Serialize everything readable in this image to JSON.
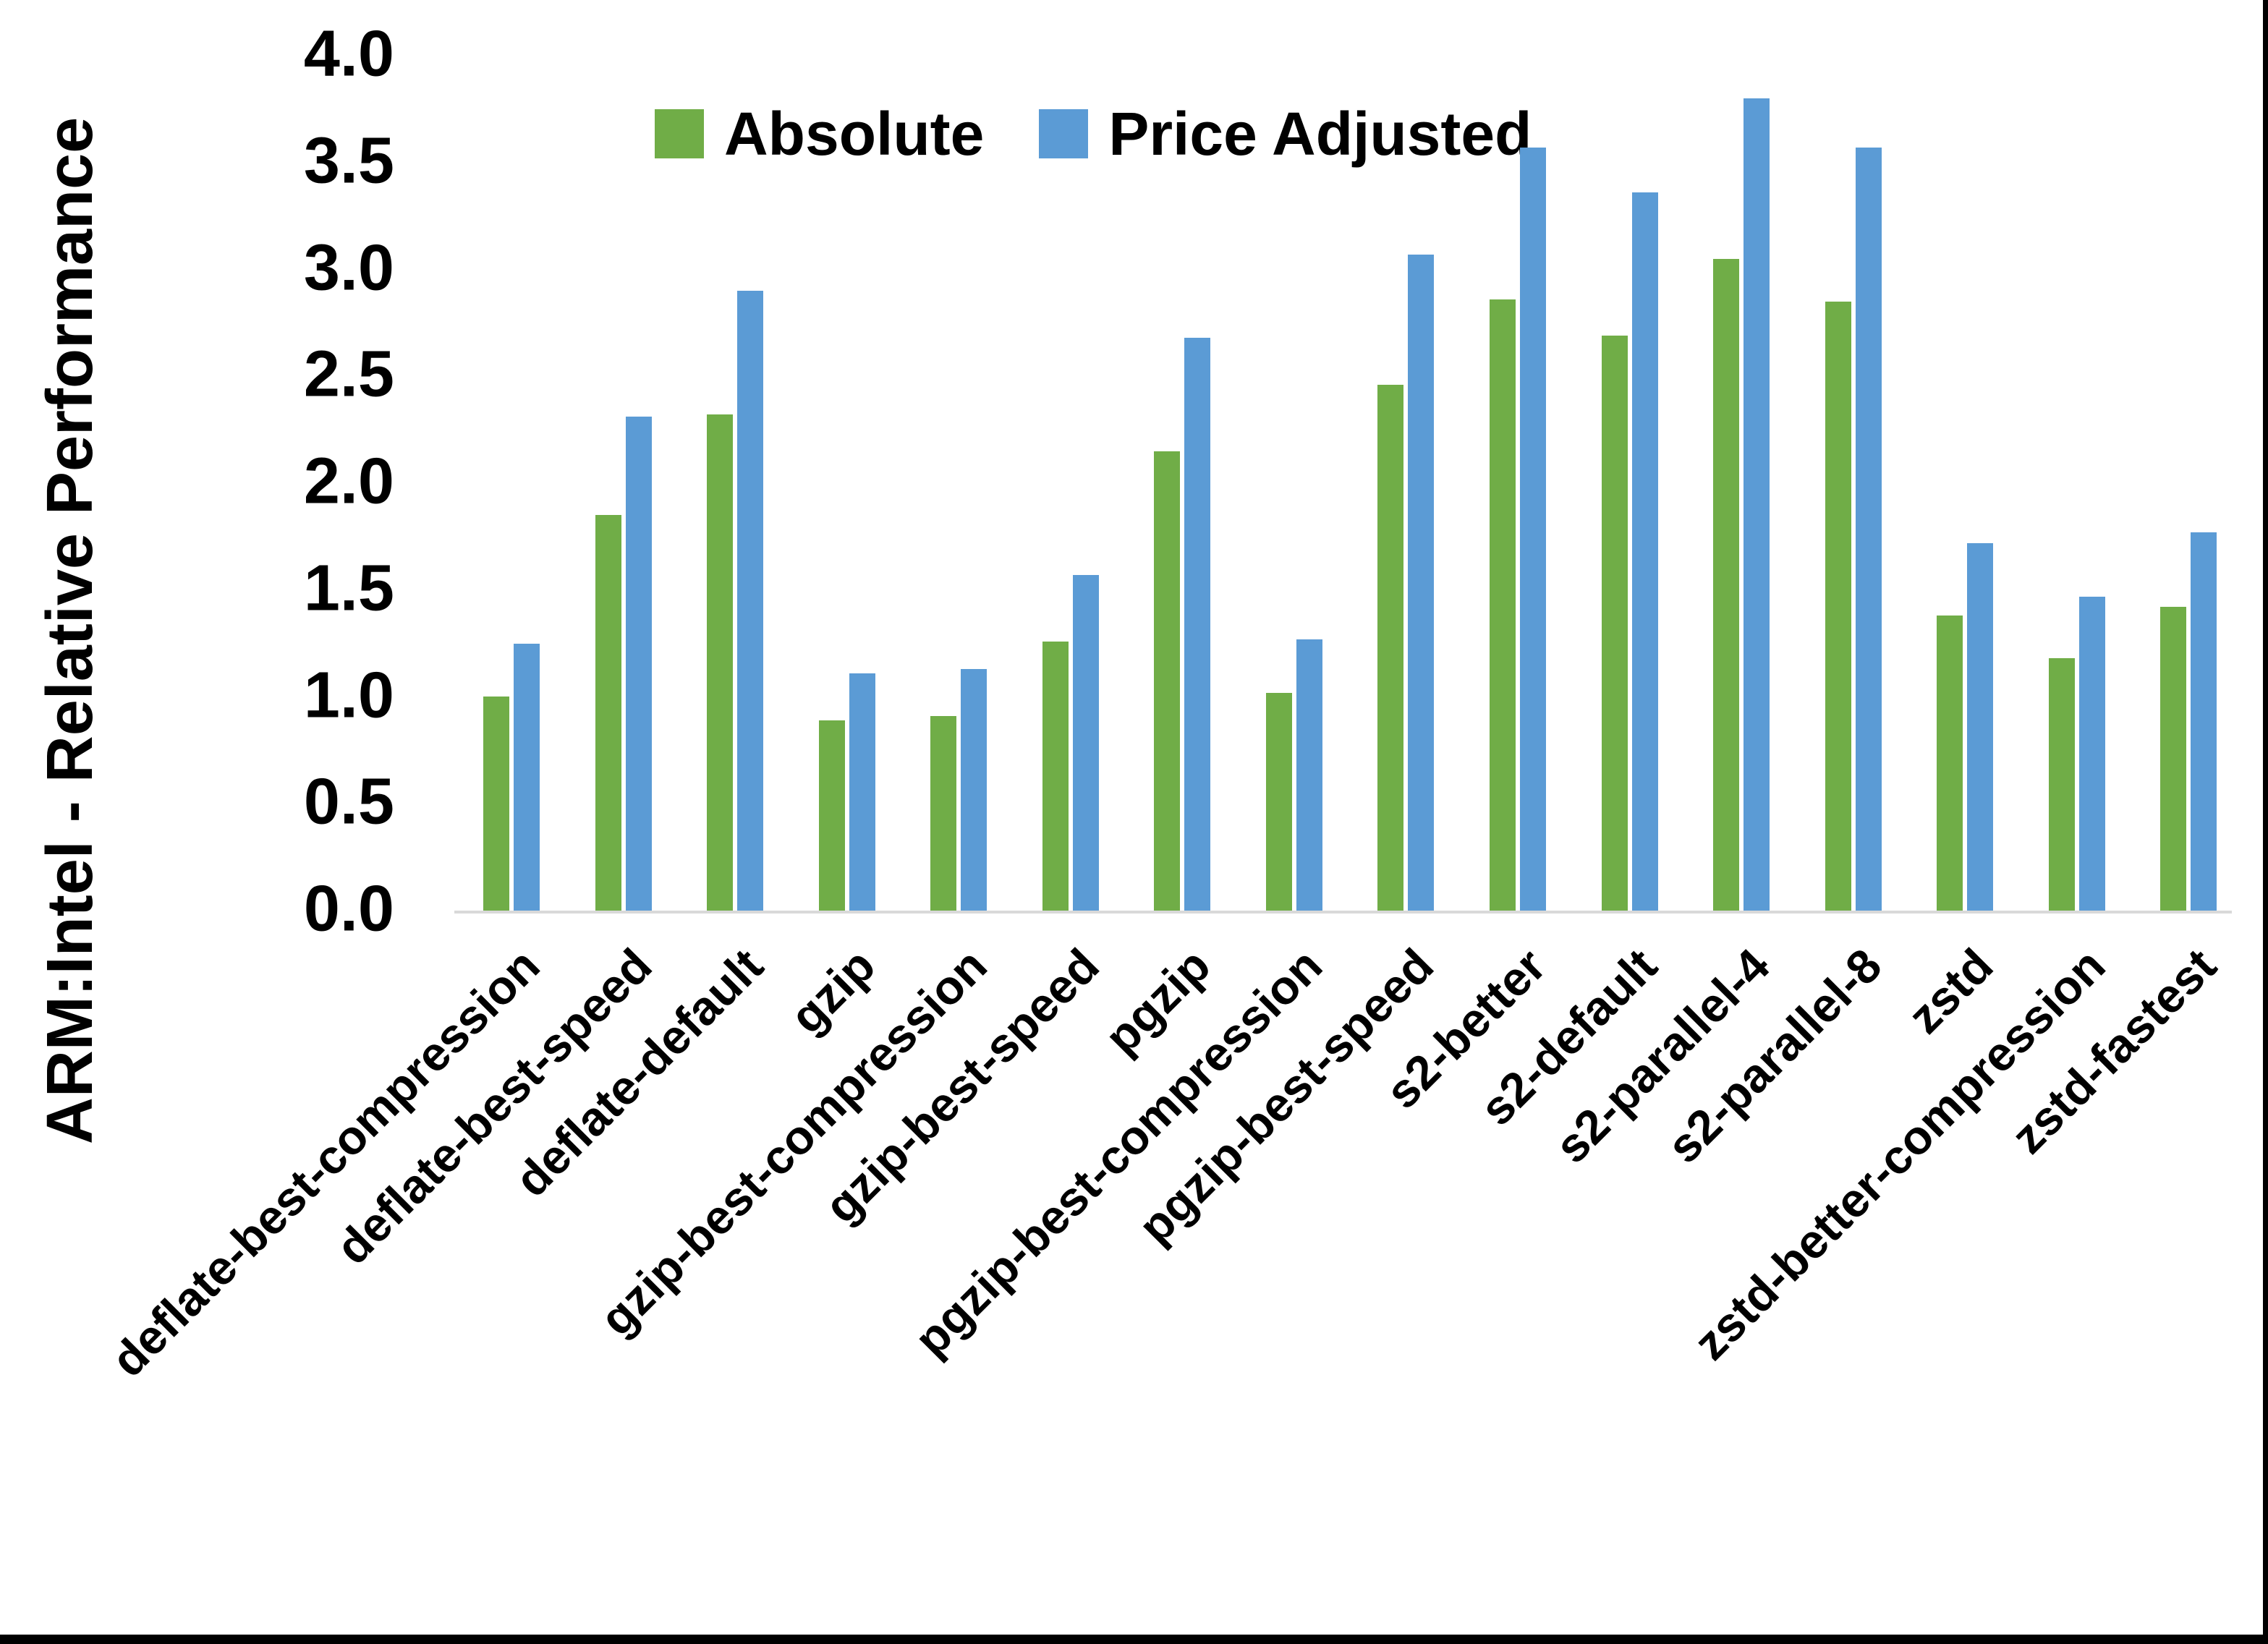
{
  "chart_data": {
    "type": "bar",
    "title": "",
    "xlabel": "",
    "ylabel": "ARM:Intel - Relative Performance",
    "ylim": [
      0.0,
      4.0
    ],
    "ytick_step": 0.5,
    "ytick_labels": [
      "0.0",
      "0.5",
      "1.0",
      "1.5",
      "2.0",
      "2.5",
      "3.0",
      "3.5",
      "4.0"
    ],
    "grid": false,
    "legend_position": "top-center",
    "categories": [
      "deflate-best-compression",
      "deflate-best-speed",
      "deflate-default",
      "gzip",
      "gzip-best-compression",
      "gzip-best-speed",
      "pgzip",
      "pgzip-best-compression",
      "pgzip-best-speed",
      "s2-better",
      "s2-default",
      "s2-parallel-4",
      "s2-parallel-8",
      "zstd",
      "zstd-better-compression",
      "zstd-fastest"
    ],
    "series": [
      {
        "name": "Absolute",
        "color": "#70AD47",
        "values": [
          1.0,
          1.85,
          2.32,
          0.89,
          0.91,
          1.26,
          2.15,
          1.02,
          2.46,
          2.86,
          2.69,
          3.05,
          2.85,
          1.38,
          1.18,
          1.42
        ]
      },
      {
        "name": "Price Adjusted",
        "color": "#5B9BD5",
        "values": [
          1.25,
          2.31,
          2.9,
          1.11,
          1.13,
          1.57,
          2.68,
          1.27,
          3.07,
          3.57,
          3.36,
          3.8,
          3.57,
          1.72,
          1.47,
          1.77
        ]
      }
    ],
    "axis_line_color": "#D9D9D9",
    "text_color": "#000000"
  }
}
